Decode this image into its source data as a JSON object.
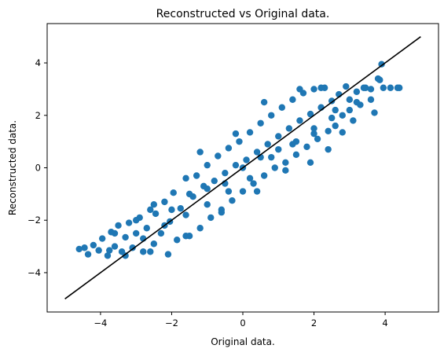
{
  "chart_data": {
    "type": "scatter",
    "title": "Reconstructed vs Original data.",
    "xlabel": "Original data.",
    "ylabel": "Reconstructed data.",
    "xlim": [
      -5.5,
      5.5
    ],
    "ylim": [
      -5.5,
      5.5
    ],
    "x_ticks": [
      -4,
      -2,
      0,
      2,
      4
    ],
    "y_ticks": [
      -4,
      -2,
      0,
      2,
      4
    ],
    "x_tick_labels": [
      "−4",
      "−2",
      "0",
      "2",
      "4"
    ],
    "y_tick_labels": [
      "−4",
      "−2",
      "0",
      "2",
      "4"
    ],
    "grid": false,
    "series": [
      {
        "type": "scatter",
        "color": "#1f77b4",
        "marker_radius": 4.2,
        "points": [
          [
            -4.6,
            -3.1
          ],
          [
            -4.45,
            -3.05
          ],
          [
            -4.35,
            -3.3
          ],
          [
            -4.2,
            -2.95
          ],
          [
            -4.05,
            -3.15
          ],
          [
            -3.95,
            -2.7
          ],
          [
            -3.8,
            -3.35
          ],
          [
            -3.7,
            -2.45
          ],
          [
            -3.6,
            -3.0
          ],
          [
            -3.5,
            -2.2
          ],
          [
            -3.4,
            -3.2
          ],
          [
            -3.3,
            -2.65
          ],
          [
            -3.2,
            -2.1
          ],
          [
            -3.1,
            -3.05
          ],
          [
            -3.0,
            -2.5
          ],
          [
            -2.9,
            -1.9
          ],
          [
            -2.8,
            -3.2
          ],
          [
            -2.7,
            -2.3
          ],
          [
            -2.6,
            -1.6
          ],
          [
            -2.5,
            -2.9
          ],
          [
            -2.45,
            -1.75
          ],
          [
            -2.3,
            -2.5
          ],
          [
            -2.2,
            -1.3
          ],
          [
            -2.1,
            -3.3
          ],
          [
            -2.05,
            -2.05
          ],
          [
            -1.95,
            -0.95
          ],
          [
            -1.85,
            -2.75
          ],
          [
            -1.75,
            -1.55
          ],
          [
            -1.6,
            -0.4
          ],
          [
            -1.5,
            -2.6
          ],
          [
            -1.4,
            -1.1
          ],
          [
            -1.3,
            -0.3
          ],
          [
            -1.2,
            -2.3
          ],
          [
            -1.1,
            -0.7
          ],
          [
            -1.0,
            0.1
          ],
          [
            -0.9,
            -1.9
          ],
          [
            -0.8,
            -0.5
          ],
          [
            -0.7,
            0.45
          ],
          [
            -0.6,
            -1.6
          ],
          [
            -0.5,
            -0.2
          ],
          [
            -0.4,
            0.75
          ],
          [
            -0.3,
            -1.25
          ],
          [
            -0.2,
            0.1
          ],
          [
            -0.1,
            1.0
          ],
          [
            0.0,
            -0.9
          ],
          [
            0.1,
            0.3
          ],
          [
            0.2,
            1.35
          ],
          [
            0.3,
            -0.6
          ],
          [
            0.4,
            0.6
          ],
          [
            0.5,
            1.7
          ],
          [
            0.6,
            -0.3
          ],
          [
            0.7,
            0.9
          ],
          [
            0.8,
            2.0
          ],
          [
            0.9,
            0.0
          ],
          [
            1.0,
            1.2
          ],
          [
            1.1,
            2.3
          ],
          [
            1.2,
            0.2
          ],
          [
            1.3,
            1.5
          ],
          [
            1.4,
            2.6
          ],
          [
            1.5,
            0.5
          ],
          [
            1.6,
            1.8
          ],
          [
            1.7,
            2.85
          ],
          [
            1.8,
            0.8
          ],
          [
            1.9,
            2.05
          ],
          [
            2.0,
            3.0
          ],
          [
            2.1,
            1.1
          ],
          [
            2.2,
            2.3
          ],
          [
            2.3,
            3.05
          ],
          [
            2.4,
            1.4
          ],
          [
            2.5,
            2.55
          ],
          [
            2.6,
            1.6
          ],
          [
            2.7,
            2.8
          ],
          [
            2.8,
            2.0
          ],
          [
            2.9,
            3.1
          ],
          [
            3.0,
            2.2
          ],
          [
            3.1,
            1.8
          ],
          [
            3.2,
            2.9
          ],
          [
            3.3,
            2.4
          ],
          [
            3.45,
            3.05
          ],
          [
            3.6,
            2.6
          ],
          [
            3.7,
            2.1
          ],
          [
            3.85,
            3.35
          ],
          [
            3.9,
            3.95
          ],
          [
            4.15,
            3.05
          ],
          [
            4.4,
            3.05
          ],
          [
            -3.0,
            -2.0
          ],
          [
            -2.5,
            -1.4
          ],
          [
            -2.0,
            -1.6
          ],
          [
            -1.5,
            -1.0
          ],
          [
            -1.0,
            -0.8
          ],
          [
            -0.5,
            -0.6
          ],
          [
            0.0,
            0.0
          ],
          [
            0.5,
            0.4
          ],
          [
            1.0,
            0.7
          ],
          [
            1.5,
            1.0
          ],
          [
            2.0,
            1.5
          ],
          [
            2.5,
            1.9
          ],
          [
            3.0,
            2.6
          ],
          [
            -2.8,
            -2.7
          ],
          [
            -2.2,
            -2.2
          ],
          [
            -1.6,
            -1.8
          ],
          [
            -1.0,
            -1.4
          ],
          [
            -0.4,
            -0.9
          ],
          [
            0.2,
            -0.4
          ],
          [
            0.8,
            0.4
          ],
          [
            1.4,
            0.9
          ],
          [
            2.0,
            1.3
          ],
          [
            2.6,
            2.2
          ],
          [
            3.2,
            2.5
          ],
          [
            -3.6,
            -2.5
          ],
          [
            -1.2,
            0.6
          ],
          [
            -0.2,
            1.3
          ],
          [
            0.6,
            2.5
          ],
          [
            1.6,
            3.0
          ],
          [
            2.2,
            3.05
          ],
          [
            3.4,
            3.05
          ],
          [
            3.6,
            3.0
          ],
          [
            3.8,
            3.4
          ],
          [
            2.8,
            1.35
          ],
          [
            2.4,
            0.7
          ],
          [
            1.9,
            0.2
          ],
          [
            1.2,
            -0.1
          ],
          [
            0.4,
            -0.9
          ],
          [
            -0.6,
            -1.7
          ],
          [
            -1.6,
            -2.6
          ],
          [
            -2.6,
            -3.2
          ],
          [
            -3.3,
            -3.35
          ],
          [
            -3.75,
            -3.15
          ],
          [
            4.35,
            3.05
          ],
          [
            3.95,
            3.05
          ]
        ]
      },
      {
        "type": "line",
        "color": "#000000",
        "points": [
          [
            -5,
            -5
          ],
          [
            5,
            5
          ]
        ]
      }
    ]
  }
}
